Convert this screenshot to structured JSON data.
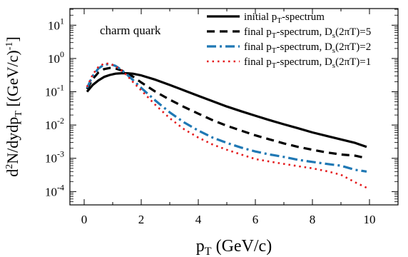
{
  "chart_data": {
    "type": "line",
    "title": "",
    "annotation": "charm quark",
    "xlabel": {
      "main": "p",
      "sub": "T",
      "unit": "(GeV/c)"
    },
    "ylabel": {
      "main": "d",
      "sup": "2",
      "rest": "N/dydp",
      "sub": "T",
      "unit_open": "[(GeV/c)",
      "unit_sup": "-1",
      "unit_close": "]"
    },
    "xlim": [
      -0.5,
      11.0
    ],
    "ylim_log10": [
      -4.4,
      1.5
    ],
    "y_scale": "log",
    "grid": false,
    "legend_placement": "top-right",
    "x_ticks": [
      {
        "value": 0,
        "label": "0"
      },
      {
        "value": 2,
        "label": "2"
      },
      {
        "value": 4,
        "label": "4"
      },
      {
        "value": 6,
        "label": "6"
      },
      {
        "value": 8,
        "label": "8"
      },
      {
        "value": 10,
        "label": "10"
      }
    ],
    "y_ticks": [
      {
        "exp": 1,
        "base": "10",
        "sup": "1"
      },
      {
        "exp": 0,
        "base": "10",
        "sup": "0"
      },
      {
        "exp": -1,
        "base": "10",
        "sup": "-1"
      },
      {
        "exp": -2,
        "base": "10",
        "sup": "-2"
      },
      {
        "exp": -3,
        "base": "10",
        "sup": "-3"
      },
      {
        "exp": -4,
        "base": "10",
        "sup": "-4"
      }
    ],
    "x": [
      0.1,
      0.3,
      0.5,
      0.7,
      0.9,
      1.1,
      1.3,
      1.5,
      1.7,
      2.0,
      2.5,
      3.0,
      3.5,
      4.0,
      4.5,
      5.0,
      5.5,
      6.0,
      6.5,
      7.0,
      7.5,
      8.0,
      8.5,
      9.0,
      9.5,
      9.9
    ],
    "series": [
      {
        "legend_parts": [
          "initial p",
          "T",
          "-spectrum"
        ],
        "color": "#000000",
        "dash": "",
        "width": 3.2,
        "values": [
          0.1,
          0.16,
          0.22,
          0.28,
          0.32,
          0.35,
          0.36,
          0.36,
          0.35,
          0.31,
          0.23,
          0.16,
          0.11,
          0.075,
          0.052,
          0.036,
          0.026,
          0.019,
          0.014,
          0.0105,
          0.008,
          0.006,
          0.0047,
          0.0037,
          0.0029,
          0.0022
        ]
      },
      {
        "legend_parts": [
          "final p",
          "T",
          "-spectrum, D",
          "s",
          "(2πT)=5"
        ],
        "color": "#000000",
        "dash": "11,7",
        "width": 3.2,
        "values": [
          0.12,
          0.24,
          0.38,
          0.48,
          0.52,
          0.5,
          0.44,
          0.37,
          0.29,
          0.19,
          0.1,
          0.058,
          0.035,
          0.022,
          0.014,
          0.0095,
          0.0068,
          0.0049,
          0.0037,
          0.0028,
          0.0022,
          0.0018,
          0.0015,
          0.0013,
          0.0012,
          0.001
        ]
      },
      {
        "legend_parts": [
          "final p",
          "T",
          "-spectrum, D",
          "s",
          "(2πT)=2"
        ],
        "color": "#1f78b4",
        "dash": "13,5,3,5",
        "width": 3.2,
        "values": [
          0.13,
          0.3,
          0.5,
          0.65,
          0.68,
          0.6,
          0.46,
          0.33,
          0.23,
          0.13,
          0.054,
          0.024,
          0.012,
          0.0068,
          0.0042,
          0.0029,
          0.0021,
          0.0016,
          0.0013,
          0.0011,
          0.0009,
          0.00078,
          0.00068,
          0.0006,
          0.00045,
          0.0004
        ]
      },
      {
        "legend_parts": [
          "final p",
          "T",
          "-spectrum, D",
          "s",
          "(2πT)=1"
        ],
        "color": "#e41a1c",
        "dash": "2.5,5",
        "width": 2.6,
        "values": [
          0.14,
          0.33,
          0.56,
          0.7,
          0.7,
          0.58,
          0.44,
          0.31,
          0.2,
          0.11,
          0.04,
          0.016,
          0.0075,
          0.0042,
          0.0026,
          0.0018,
          0.0013,
          0.00095,
          0.0008,
          0.00068,
          0.00058,
          0.0005,
          0.00041,
          0.00032,
          0.00019,
          0.00013
        ]
      }
    ]
  }
}
